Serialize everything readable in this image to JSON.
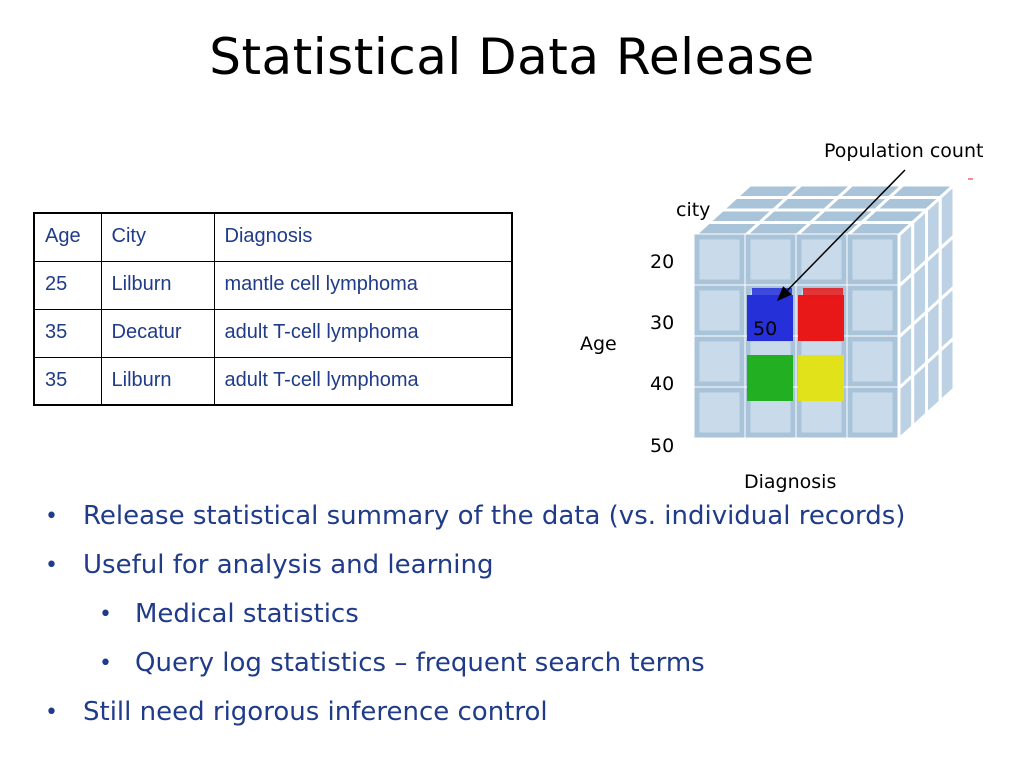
{
  "slide": {
    "title": "Statistical Data Release"
  },
  "table": {
    "headers": [
      "Age",
      "City",
      "Diagnosis"
    ],
    "rows": [
      [
        "25",
        "Lilburn",
        "mantle cell lymphoma"
      ],
      [
        "35",
        "Decatur",
        "adult T-cell lymphoma"
      ],
      [
        "35",
        "Lilburn",
        "adult T-cell lymphoma"
      ]
    ]
  },
  "cube": {
    "annotation": "Population count",
    "axis_city": "city",
    "axis_age": "Age",
    "axis_diagnosis": "Diagnosis",
    "age_ticks": [
      "20",
      "30",
      "40",
      "50"
    ],
    "highlight_value": "50",
    "cell_colors": {
      "frame": "#a9c3d9",
      "blue": "#2630d8",
      "red": "#e81818",
      "green": "#22b022",
      "yellow": "#e2e21a"
    }
  },
  "bullets": [
    {
      "level": 1,
      "text": "Release statistical summary of the data (vs. individual records)"
    },
    {
      "level": 1,
      "text": "Useful for analysis and learning"
    },
    {
      "level": 2,
      "text": "Medical statistics"
    },
    {
      "level": 2,
      "text": "Query log statistics – frequent search terms"
    },
    {
      "level": 1,
      "text": "Still need rigorous inference control"
    }
  ]
}
